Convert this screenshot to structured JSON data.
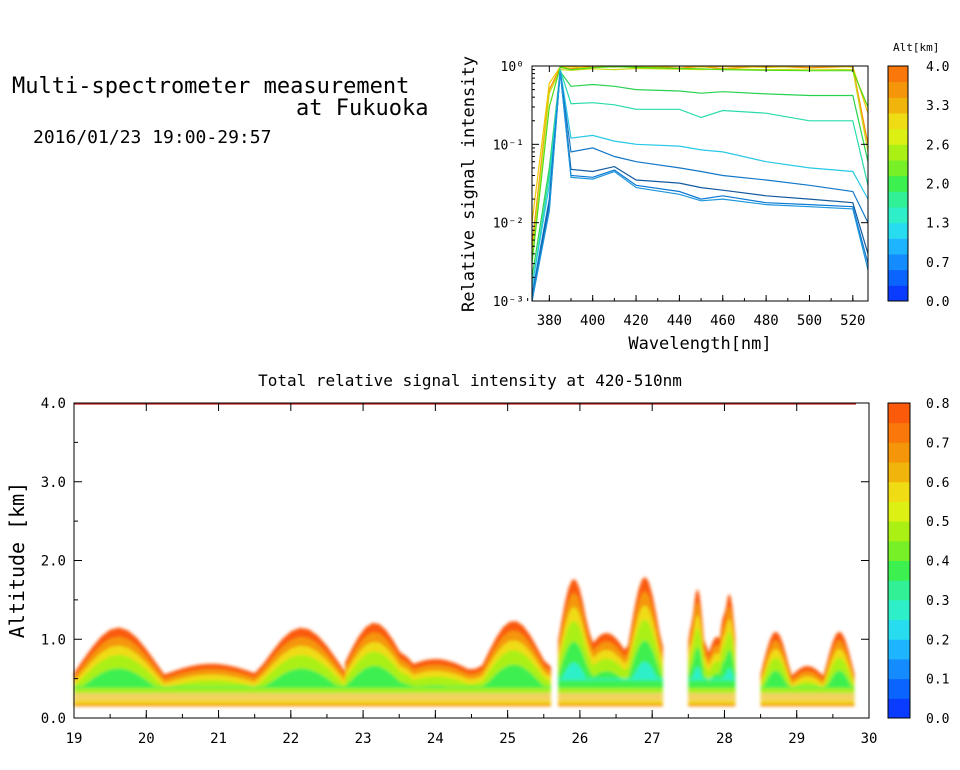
{
  "header": {
    "title_line1": "Multi-spectrometer measurement",
    "title_line2": "at Fukuoka",
    "timestamp": "2016/01/23 19:00-29:57"
  },
  "chart_data": [
    {
      "type": "line",
      "xlabel": "Wavelength[nm]",
      "ylabel": "Relative signal intensity",
      "yscale": "log",
      "xlim": [
        372,
        527
      ],
      "ylim": [
        0.001,
        1
      ],
      "x_ticks": [
        "380",
        "400",
        "420",
        "440",
        "460",
        "480",
        "500",
        "520"
      ],
      "y_ticks": [
        "10⁻³",
        "10⁻²",
        "10⁻¹",
        "10⁰"
      ],
      "colorbar": {
        "label": "Alt[km]",
        "tick_labels": [
          "0.0",
          "0.7",
          "1.3",
          "2.0",
          "2.6",
          "3.3",
          "4.0"
        ],
        "colors": [
          "#0a3cff",
          "#0a64ff",
          "#148cff",
          "#1eb4ff",
          "#28dcf0",
          "#2ef0c8",
          "#32f096",
          "#3cf050",
          "#78f028",
          "#aaf014",
          "#dcf014",
          "#f0dc14",
          "#f0b40a",
          "#f5960a",
          "#fa780a"
        ]
      },
      "x": [
        372,
        380,
        385,
        390,
        400,
        410,
        420,
        440,
        450,
        460,
        480,
        500,
        520,
        527
      ],
      "series": [
        {
          "color": "#ff8c00",
          "values": [
            0.005,
            0.5,
            0.95,
            0.92,
            1,
            0.97,
            1,
            0.94,
            0.98,
            0.93,
            0.99,
            0.95,
            0.98,
            0.1
          ]
        },
        {
          "color": "#f0c800",
          "values": [
            0.01,
            0.6,
            0.97,
            0.97,
            0.95,
            1,
            0.96,
            1,
            0.97,
            0.99,
            0.96,
            1,
            0.97,
            0.25
          ]
        },
        {
          "color": "#c8dc14",
          "values": [
            0.004,
            0.45,
            0.9,
            0.88,
            0.92,
            0.9,
            0.93,
            0.91,
            0.9,
            0.92,
            0.9,
            0.91,
            0.9,
            0.08
          ]
        },
        {
          "color": "#50dc14",
          "values": [
            0.003,
            0.3,
            0.97,
            0.9,
            0.95,
            0.98,
            0.96,
            0.93,
            0.92,
            0.9,
            0.88,
            0.87,
            0.87,
            0.3
          ]
        },
        {
          "color": "#28d250",
          "values": [
            0.002,
            0.05,
            0.85,
            0.55,
            0.58,
            0.55,
            0.5,
            0.48,
            0.45,
            0.47,
            0.44,
            0.42,
            0.42,
            0.06
          ]
        },
        {
          "color": "#28dcaa",
          "values": [
            0.0015,
            0.04,
            0.9,
            0.33,
            0.34,
            0.32,
            0.28,
            0.28,
            0.22,
            0.27,
            0.25,
            0.2,
            0.2,
            0.03
          ]
        },
        {
          "color": "#28c8e6",
          "values": [
            0.0015,
            0.03,
            0.9,
            0.12,
            0.13,
            0.11,
            0.1,
            0.095,
            0.085,
            0.08,
            0.06,
            0.05,
            0.045,
            0.02
          ]
        },
        {
          "color": "#1478c8",
          "values": [
            0.0012,
            0.02,
            0.85,
            0.08,
            0.09,
            0.07,
            0.06,
            0.05,
            0.045,
            0.04,
            0.035,
            0.03,
            0.025,
            0.01
          ]
        },
        {
          "color": "#145aa0",
          "values": [
            0.001,
            0.018,
            0.85,
            0.048,
            0.045,
            0.052,
            0.035,
            0.032,
            0.028,
            0.026,
            0.022,
            0.02,
            0.018,
            0.004
          ]
        },
        {
          "color": "#0a78d2",
          "values": [
            0.001,
            0.015,
            0.85,
            0.04,
            0.038,
            0.047,
            0.03,
            0.025,
            0.02,
            0.022,
            0.018,
            0.017,
            0.016,
            0.003
          ]
        },
        {
          "color": "#1e96dc",
          "values": [
            0.001,
            0.014,
            0.85,
            0.038,
            0.036,
            0.045,
            0.028,
            0.023,
            0.019,
            0.02,
            0.017,
            0.016,
            0.015,
            0.0025
          ]
        }
      ]
    },
    {
      "type": "heatmap",
      "title": "Total relative signal intensity at 420-510nm",
      "xlabel": "",
      "ylabel": "Altitude [km]",
      "xlim": [
        19,
        30
      ],
      "ylim": [
        0,
        4
      ],
      "x_ticks": [
        "19",
        "20",
        "21",
        "22",
        "23",
        "24",
        "25",
        "26",
        "27",
        "28",
        "29",
        "30"
      ],
      "y_ticks": [
        "0.0",
        "1.0",
        "2.0",
        "3.0",
        "4.0"
      ],
      "zlim": [
        0,
        0.8
      ],
      "colorbar": {
        "tick_labels": [
          "0.0",
          "0.1",
          "0.2",
          "0.3",
          "0.4",
          "0.5",
          "0.6",
          "0.7",
          "0.8"
        ],
        "colors": [
          "#0a3cff",
          "#0a64ff",
          "#148cff",
          "#1eb4ff",
          "#28dcf0",
          "#2ef0c8",
          "#32f096",
          "#3cf050",
          "#78f028",
          "#aaf014",
          "#dcf014",
          "#f0dc14",
          "#f0b40a",
          "#f5960a",
          "#fa780a",
          "#fa5a0a"
        ]
      },
      "segments": [
        {
          "start": 19.0,
          "end": 22.75,
          "max_alt": 1.15,
          "core_alt": 0.95
        },
        {
          "start": 22.75,
          "end": 25.6,
          "max_alt": 1.25,
          "core_alt": 1.05
        },
        {
          "start": 25.7,
          "end": 27.15,
          "max_alt": 1.8,
          "core_alt": 1.45
        },
        {
          "start": 27.5,
          "end": 28.15,
          "max_alt": 1.72,
          "core_alt": 1.4
        },
        {
          "start": 28.5,
          "end": 29.8,
          "max_alt": 1.1,
          "core_alt": 0.9
        }
      ]
    }
  ]
}
